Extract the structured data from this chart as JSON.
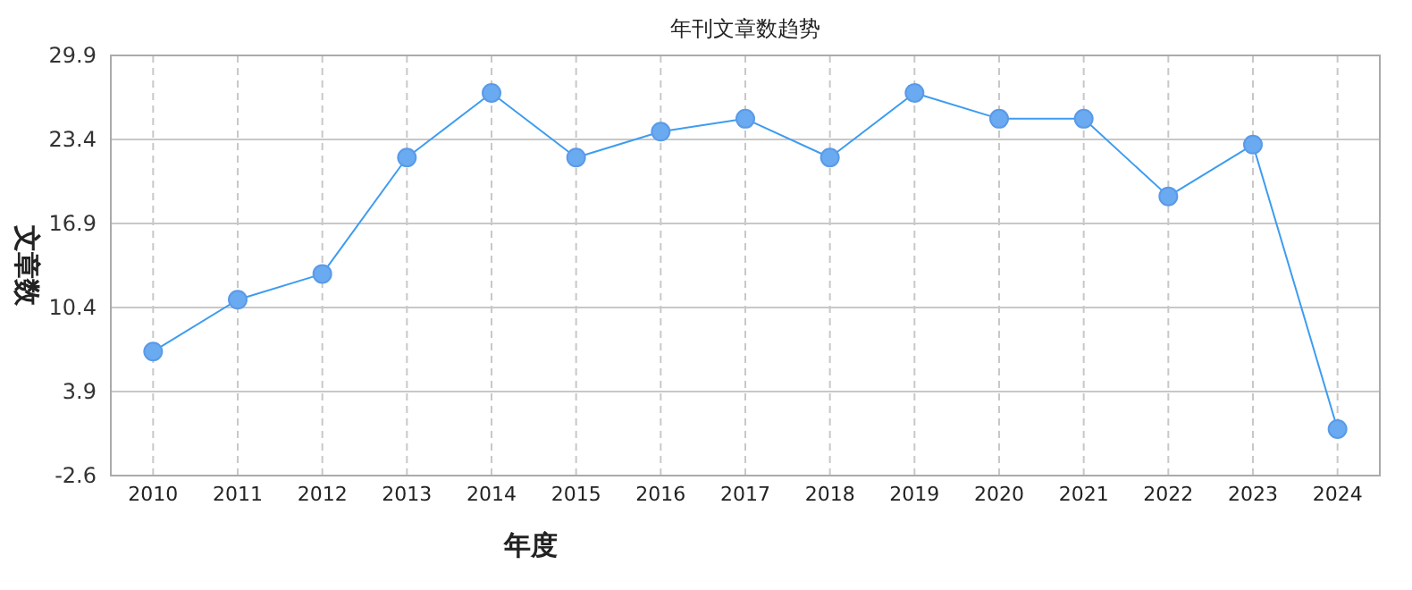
{
  "chart_data": {
    "type": "line",
    "title": "年刊文章数趋势",
    "xlabel": "年度",
    "ylabel": "文章数",
    "categories": [
      "2010",
      "2011",
      "2012",
      "2013",
      "2014",
      "2015",
      "2016",
      "2017",
      "2018",
      "2019",
      "2020",
      "2021",
      "2022",
      "2023",
      "2024"
    ],
    "series": [
      {
        "color": "#3d9cf0",
        "values": [
          7,
          11,
          13,
          22,
          27,
          22,
          24,
          25,
          22,
          27,
          25,
          25,
          19,
          23,
          1
        ]
      }
    ],
    "ylim": [
      -2.6,
      29.9
    ],
    "yticks": [
      -2.6,
      3.9,
      10.4,
      16.9,
      23.4,
      29.9
    ],
    "grid": true,
    "marker": "circle"
  }
}
